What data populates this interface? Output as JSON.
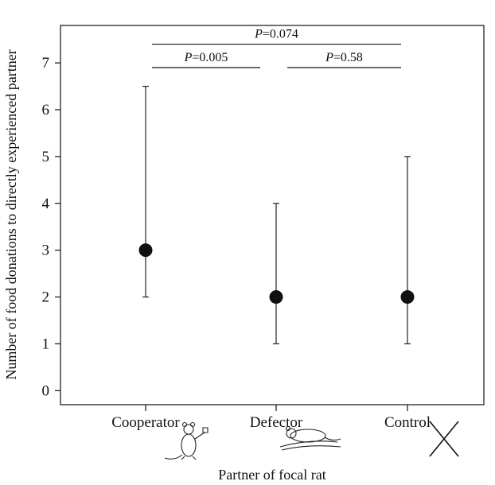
{
  "chart_data": {
    "type": "scatter",
    "title": "",
    "xlabel": "Partner of focal rat",
    "ylabel": "Number of food donations to directly experienced partner",
    "ylim": [
      -0.3,
      7.8
    ],
    "yticks": [
      0,
      1,
      2,
      3,
      4,
      5,
      6,
      7
    ],
    "categories": [
      "Cooperator",
      "Defector",
      "Control"
    ],
    "series": [
      {
        "values": [
          3,
          2,
          2
        ],
        "lower": [
          2,
          1,
          1
        ],
        "upper": [
          6.5,
          4,
          5
        ]
      }
    ],
    "comparisons": [
      {
        "from": 0,
        "to": 2,
        "level": 7.4,
        "p_letter": "P",
        "p_value": "=0.074"
      },
      {
        "from": 0,
        "to": 1,
        "level": 6.9,
        "p_letter": "P",
        "p_value": "=0.005"
      },
      {
        "from": 1,
        "to": 2,
        "level": 6.9,
        "p_letter": "P",
        "p_value": "=0.58"
      }
    ],
    "grid": false,
    "legend": "none",
    "marker_color": "#111111",
    "icons": [
      "cooperator-rat-icon",
      "defector-rat-icon",
      "control-cross-icon"
    ]
  }
}
